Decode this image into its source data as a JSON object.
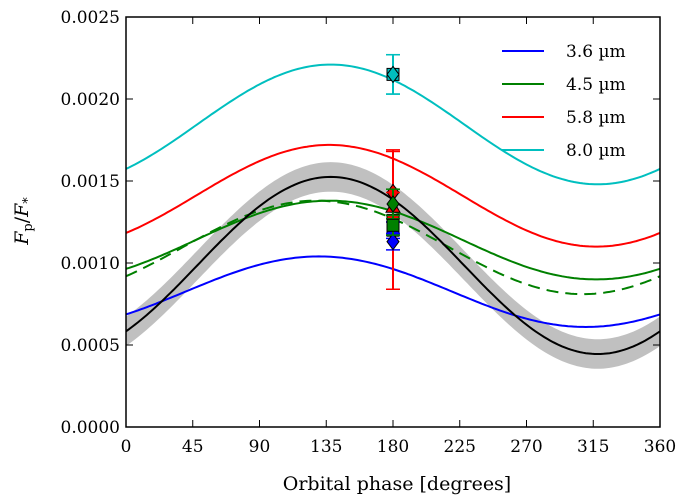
{
  "chart_data": {
    "type": "line",
    "xlabel": "Orbital phase [degrees]",
    "ylabel_main": "F",
    "ylabel_num_sub": "p",
    "ylabel_den_sub": "*",
    "xlim": [
      0,
      360
    ],
    "ylim": [
      0.0,
      0.0025
    ],
    "x_tick_labels": [
      "0",
      "45",
      "90",
      "135",
      "180",
      "225",
      "270",
      "315",
      "360"
    ],
    "y_tick_labels": [
      "0.0000",
      "0.0005",
      "0.0010",
      "0.0015",
      "0.0020",
      "0.0025"
    ],
    "legend_position": "top-right",
    "series": [
      {
        "name": "3.6 µm",
        "color": "#0000ff",
        "dashed": false,
        "model": {
          "mean": 0.000825,
          "amp": 0.000215,
          "peak": 130
        }
      },
      {
        "name": "4.5 µm",
        "color": "#008000",
        "dashed": false,
        "model": {
          "mean": 0.00114,
          "amp": 0.00024,
          "peak": 137
        }
      },
      {
        "name": "5.8 µm",
        "color": "#ff0000",
        "dashed": false,
        "model": {
          "mean": 0.00141,
          "amp": 0.00031,
          "peak": 137
        }
      },
      {
        "name": "8.0 µm",
        "color": "#00bfbf",
        "dashed": false,
        "model": {
          "mean": 0.001845,
          "amp": 0.000365,
          "peak": 138
        }
      }
    ],
    "extra_curves": [
      {
        "color": "#008000",
        "dashed": true,
        "model": {
          "mean": 0.001095,
          "amp": 0.000285,
          "peak": 128
        }
      },
      {
        "color": "#000000",
        "dashed": false,
        "band_halfwidth": 9e-05,
        "model": {
          "mean": 0.000985,
          "amp": 0.00054,
          "peak": 138
        }
      }
    ],
    "points": [
      {
        "x": 180,
        "y": 0.00215,
        "err": 0.00012,
        "color": "#00bfbf",
        "marker": "square"
      },
      {
        "x": 180,
        "y": 0.00215,
        "err": 0.00012,
        "color": "#00bfbf",
        "marker": "diamond"
      },
      {
        "x": 180,
        "y": 0.00126,
        "err": 0.00042,
        "color": "#ff0000",
        "marker": "square"
      },
      {
        "x": 180,
        "y": 0.00143,
        "err": 0.00026,
        "color": "#ff0000",
        "marker": "diamond"
      },
      {
        "x": 180,
        "y": 0.00134,
        "err": 9e-05,
        "color": "#ff0000",
        "marker": "triangle"
      },
      {
        "x": 180,
        "y": 0.0012,
        "err": 5e-05,
        "color": "#0000ff",
        "marker": "square"
      },
      {
        "x": 180,
        "y": 0.00113,
        "err": 5e-05,
        "color": "#0000ff",
        "marker": "diamond"
      },
      {
        "x": 180,
        "y": 0.00136,
        "err": 9e-05,
        "color": "#008000",
        "marker": "diamond"
      },
      {
        "x": 180,
        "y": 0.00123,
        "err": 6e-05,
        "color": "#008000",
        "marker": "square"
      }
    ]
  }
}
